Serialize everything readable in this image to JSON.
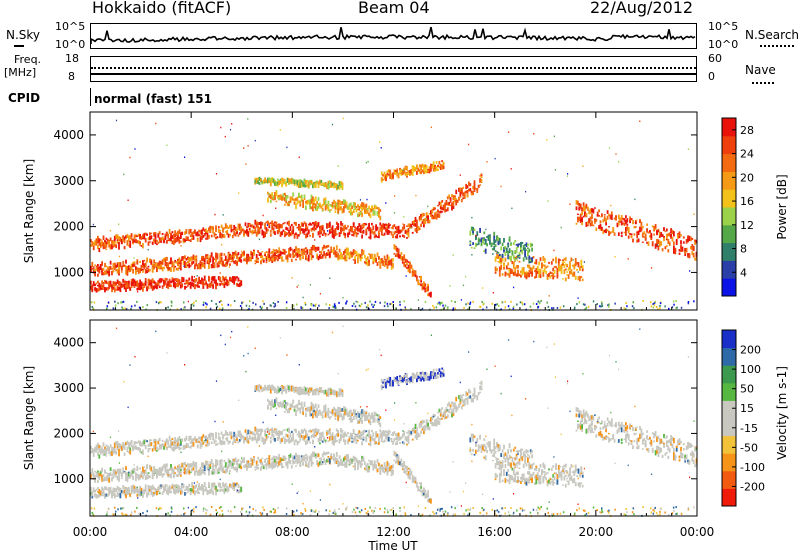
{
  "header": {
    "site": "Hokkaido (fitACF)",
    "beam": "Beam 04",
    "date": "22/Aug/2012"
  },
  "top_panels": {
    "nsky_label": "N.Sky",
    "nsky_ticks": [
      "10^5",
      "10^0"
    ],
    "nsearch_label": "N.Search",
    "nsearch_ticks": [
      "10^5",
      "10^0"
    ],
    "freq_label_1": "Freq.",
    "freq_label_2": "[MHz]",
    "freq_ticks": [
      "18",
      "8"
    ],
    "nave_label": "Nave",
    "nave_ticks": [
      "60",
      "0"
    ],
    "cpid_label": "CPID",
    "cpid_value": "normal (fast) 151"
  },
  "colors": {
    "power_scale": [
      "#0a12e6",
      "#2a3fa8",
      "#2f7f6a",
      "#55a847",
      "#9bd24a",
      "#f2c21b",
      "#f59a17",
      "#f36a10",
      "#ee3f0c",
      "#e8120a"
    ],
    "velocity_scale": [
      "#f01a0a",
      "#f25a0f",
      "#f59418",
      "#f2c23a",
      "#c8c8c0",
      "#c8c8c0",
      "#56b840",
      "#3c9a4e",
      "#2f6aa8",
      "#1a2fc8"
    ]
  },
  "chart_data": [
    {
      "type": "heatmap",
      "name": "power",
      "xlabel": "",
      "ylabel": "Slant Range [km]",
      "x_ticks": [
        "00:00",
        "04:00",
        "08:00",
        "12:00",
        "16:00",
        "20:00",
        "00:00"
      ],
      "y_ticks": [
        1000,
        2000,
        3000,
        4000
      ],
      "ylim": [
        180,
        4500
      ],
      "colorbar_label": "Power [dB]",
      "colorbar_ticks": [
        4,
        8,
        12,
        16,
        20,
        24,
        28
      ],
      "colorbar_range": [
        0,
        30
      ]
    },
    {
      "type": "heatmap",
      "name": "velocity",
      "xlabel": "Time UT",
      "ylabel": "Slant Range [km]",
      "x_ticks": [
        "00:00",
        "04:00",
        "08:00",
        "12:00",
        "16:00",
        "20:00",
        "00:00"
      ],
      "y_ticks": [
        1000,
        2000,
        3000,
        4000
      ],
      "ylim": [
        180,
        4500
      ],
      "colorbar_label": "Velocity [m s-1]",
      "colorbar_ticks": [
        200,
        100,
        50,
        15,
        -15,
        -50,
        -100,
        -200
      ]
    }
  ]
}
